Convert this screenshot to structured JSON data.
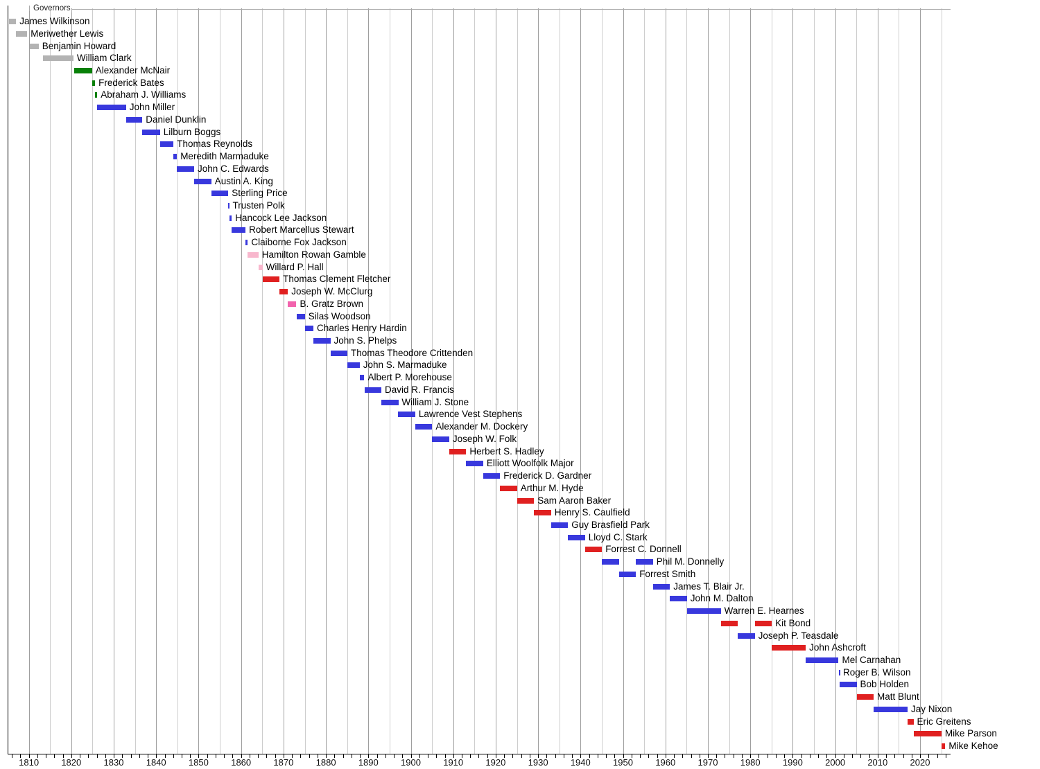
{
  "chart_data": {
    "type": "timeline",
    "subtype": "gantt",
    "title": "Governors",
    "x_axis": {
      "start_year": 1805,
      "end_year": 2027,
      "gridline_interval_years": 5,
      "first_gridline_year": 1810,
      "last_gridline_year": 2025,
      "minor_tick_interval_years": 2,
      "first_minor_tick_year": 1806,
      "last_minor_tick_year": 2026,
      "decade_tick_labels": [
        "1810",
        "1820",
        "1830",
        "1840",
        "1850",
        "1860",
        "1870",
        "1880",
        "1890",
        "1900",
        "1910",
        "1920",
        "1930",
        "1940",
        "1950",
        "1960",
        "1970",
        "1980",
        "1990",
        "2000",
        "2010",
        "2020"
      ]
    },
    "party_colors": {
      "territorial": "#b3b3b3",
      "democratic-republican": "#088008",
      "democratic": "#3838dd",
      "unionist": "#f8b7cd",
      "republican": "#e02020",
      "liberal-republican": "#f263ad"
    },
    "governors": [
      {
        "name": "James Wilkinson",
        "party": "territorial",
        "terms": [
          [
            1805.3,
            1807.0
          ]
        ]
      },
      {
        "name": "Meriwether Lewis",
        "party": "territorial",
        "terms": [
          [
            1807.0,
            1809.6
          ]
        ]
      },
      {
        "name": "Benjamin Howard",
        "party": "territorial",
        "terms": [
          [
            1810.2,
            1812.3
          ]
        ]
      },
      {
        "name": "William Clark",
        "party": "territorial",
        "terms": [
          [
            1813.3,
            1820.5
          ]
        ]
      },
      {
        "name": "Alexander McNair",
        "party": "democratic-republican",
        "terms": [
          [
            1820.7,
            1824.9
          ]
        ]
      },
      {
        "name": "Frederick Bates",
        "party": "democratic-republican",
        "terms": [
          [
            1824.9,
            1825.6
          ]
        ]
      },
      {
        "name": "Abraham J. Williams",
        "party": "democratic-republican",
        "terms": [
          [
            1825.6,
            1826.1
          ]
        ]
      },
      {
        "name": "John Miller",
        "party": "democratic",
        "terms": [
          [
            1826.1,
            1832.9
          ]
        ]
      },
      {
        "name": "Daniel Dunklin",
        "party": "democratic",
        "terms": [
          [
            1832.9,
            1836.75
          ]
        ]
      },
      {
        "name": "Lilburn Boggs",
        "party": "democratic",
        "terms": [
          [
            1836.75,
            1840.9
          ]
        ]
      },
      {
        "name": "Thomas Reynolds",
        "party": "democratic",
        "terms": [
          [
            1840.9,
            1844.1
          ]
        ]
      },
      {
        "name": "Meredith Marmaduke",
        "party": "democratic",
        "terms": [
          [
            1844.1,
            1844.9
          ]
        ]
      },
      {
        "name": "John C. Edwards",
        "party": "democratic",
        "terms": [
          [
            1844.9,
            1848.95
          ]
        ]
      },
      {
        "name": "Austin A. King",
        "party": "democratic",
        "terms": [
          [
            1848.95,
            1853.0
          ]
        ]
      },
      {
        "name": "Sterling Price",
        "party": "democratic",
        "terms": [
          [
            1853.0,
            1857.0
          ]
        ]
      },
      {
        "name": "Trusten Polk",
        "party": "democratic",
        "terms": [
          [
            1857.0,
            1857.2
          ]
        ]
      },
      {
        "name": "Hancock Lee Jackson",
        "party": "democratic",
        "terms": [
          [
            1857.2,
            1857.8
          ]
        ]
      },
      {
        "name": "Robert Marcellus Stewart",
        "party": "democratic",
        "terms": [
          [
            1857.8,
            1861.05
          ]
        ]
      },
      {
        "name": "Claiborne Fox Jackson",
        "party": "democratic",
        "terms": [
          [
            1861.05,
            1861.6
          ]
        ]
      },
      {
        "name": "Hamilton Rowan Gamble",
        "party": "unionist",
        "terms": [
          [
            1861.6,
            1864.1
          ]
        ]
      },
      {
        "name": "Willard P. Hall",
        "party": "unionist",
        "terms": [
          [
            1864.1,
            1865.05
          ]
        ]
      },
      {
        "name": "Thomas Clement Fletcher",
        "party": "republican",
        "terms": [
          [
            1865.05,
            1869.05
          ]
        ]
      },
      {
        "name": "Joseph W. McClurg",
        "party": "republican",
        "terms": [
          [
            1869.05,
            1871.05
          ]
        ]
      },
      {
        "name": "B. Gratz Brown",
        "party": "liberal-republican",
        "terms": [
          [
            1871.05,
            1873.05
          ]
        ]
      },
      {
        "name": "Silas Woodson",
        "party": "democratic",
        "terms": [
          [
            1873.05,
            1875.05
          ]
        ]
      },
      {
        "name": "Charles Henry Hardin",
        "party": "democratic",
        "terms": [
          [
            1875.05,
            1877.05
          ]
        ]
      },
      {
        "name": "John S. Phelps",
        "party": "democratic",
        "terms": [
          [
            1877.05,
            1881.05
          ]
        ]
      },
      {
        "name": "Thomas Theodore Crittenden",
        "party": "democratic",
        "terms": [
          [
            1881.05,
            1885.05
          ]
        ]
      },
      {
        "name": "John S. Marmaduke",
        "party": "democratic",
        "terms": [
          [
            1885.05,
            1887.95
          ]
        ]
      },
      {
        "name": "Albert P. Morehouse",
        "party": "democratic",
        "terms": [
          [
            1887.95,
            1889.05
          ]
        ]
      },
      {
        "name": "David R. Francis",
        "party": "democratic",
        "terms": [
          [
            1889.05,
            1893.05
          ]
        ]
      },
      {
        "name": "William J. Stone",
        "party": "democratic",
        "terms": [
          [
            1893.05,
            1897.05
          ]
        ]
      },
      {
        "name": "Lawrence Vest Stephens",
        "party": "democratic",
        "terms": [
          [
            1897.05,
            1901.05
          ]
        ]
      },
      {
        "name": "Alexander M. Dockery",
        "party": "democratic",
        "terms": [
          [
            1901.05,
            1905.05
          ]
        ]
      },
      {
        "name": "Joseph W. Folk",
        "party": "democratic",
        "terms": [
          [
            1905.05,
            1909.05
          ]
        ]
      },
      {
        "name": "Herbert S. Hadley",
        "party": "republican",
        "terms": [
          [
            1909.05,
            1913.05
          ]
        ]
      },
      {
        "name": "Elliott Woolfolk Major",
        "party": "democratic",
        "terms": [
          [
            1913.05,
            1917.05
          ]
        ]
      },
      {
        "name": "Frederick D. Gardner",
        "party": "democratic",
        "terms": [
          [
            1917.05,
            1921.05
          ]
        ]
      },
      {
        "name": "Arthur M. Hyde",
        "party": "republican",
        "terms": [
          [
            1921.05,
            1925.05
          ]
        ]
      },
      {
        "name": "Sam Aaron Baker",
        "party": "republican",
        "terms": [
          [
            1925.05,
            1929.05
          ]
        ]
      },
      {
        "name": "Henry S. Caulfield",
        "party": "republican",
        "terms": [
          [
            1929.05,
            1933.05
          ]
        ]
      },
      {
        "name": "Guy Brasfield Park",
        "party": "democratic",
        "terms": [
          [
            1933.05,
            1937.05
          ]
        ]
      },
      {
        "name": "Lloyd C. Stark",
        "party": "democratic",
        "terms": [
          [
            1937.05,
            1941.05
          ]
        ]
      },
      {
        "name": "Forrest C. Donnell",
        "party": "republican",
        "terms": [
          [
            1941.05,
            1945.05
          ]
        ]
      },
      {
        "name": "Phil M. Donnelly",
        "party": "democratic",
        "terms": [
          [
            1945.05,
            1949.05
          ],
          [
            1953.05,
            1957.05
          ]
        ]
      },
      {
        "name": "Forrest Smith",
        "party": "democratic",
        "terms": [
          [
            1949.05,
            1953.05
          ]
        ]
      },
      {
        "name": "James T. Blair Jr.",
        "party": "democratic",
        "terms": [
          [
            1957.05,
            1961.05
          ]
        ]
      },
      {
        "name": "John M. Dalton",
        "party": "democratic",
        "terms": [
          [
            1961.05,
            1965.05
          ]
        ]
      },
      {
        "name": "Warren E. Hearnes",
        "party": "democratic",
        "terms": [
          [
            1965.05,
            1973.05
          ]
        ]
      },
      {
        "name": "Kit Bond",
        "party": "republican",
        "terms": [
          [
            1973.05,
            1977.05
          ],
          [
            1981.05,
            1985.05
          ]
        ]
      },
      {
        "name": "Joseph P. Teasdale",
        "party": "democratic",
        "terms": [
          [
            1977.05,
            1981.05
          ]
        ]
      },
      {
        "name": "John Ashcroft",
        "party": "republican",
        "terms": [
          [
            1985.05,
            1993.05
          ]
        ]
      },
      {
        "name": "Mel Carnahan",
        "party": "democratic",
        "terms": [
          [
            1993.05,
            2000.8
          ]
        ]
      },
      {
        "name": "Roger B. Wilson",
        "party": "democratic",
        "terms": [
          [
            2000.8,
            2001.05
          ]
        ]
      },
      {
        "name": "Bob Holden",
        "party": "democratic",
        "terms": [
          [
            2001.05,
            2005.05
          ]
        ]
      },
      {
        "name": "Matt Blunt",
        "party": "republican",
        "terms": [
          [
            2005.05,
            2009.05
          ]
        ]
      },
      {
        "name": "Jay Nixon",
        "party": "democratic",
        "terms": [
          [
            2009.05,
            2017.05
          ]
        ]
      },
      {
        "name": "Eric Greitens",
        "party": "republican",
        "terms": [
          [
            2017.05,
            2018.45
          ]
        ]
      },
      {
        "name": "Mike Parson",
        "party": "republican",
        "terms": [
          [
            2018.45,
            2025.05
          ]
        ]
      },
      {
        "name": "Mike Kehoe",
        "party": "republican",
        "terms": [
          [
            2025.05,
            2025.95
          ]
        ]
      }
    ]
  }
}
